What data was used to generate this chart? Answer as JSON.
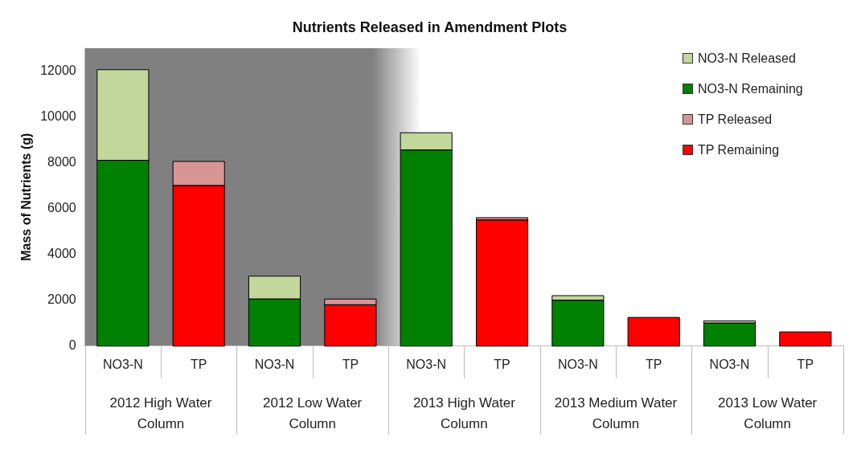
{
  "chart_data": {
    "type": "bar",
    "title": "Nutrients Released in Amendment Plots",
    "ylabel": "Mass of Nutrients (g)",
    "categories": [
      "NO3-N",
      "TP",
      "NO3-N",
      "TP",
      "NO3-N",
      "TP",
      "NO3-N",
      "TP",
      "NO3-N",
      "TP"
    ],
    "annotations": [
      "2012 High Water Column",
      "2012 Low Water Column",
      "2013 High Water Column",
      "2013 Medium Water Column",
      "2013 Low Water Column"
    ],
    "stacked": true,
    "ylim": [
      0,
      13000
    ],
    "yticks": [
      0,
      2000,
      4000,
      6000,
      8000,
      10000,
      12000
    ],
    "grid": false,
    "legend": "top right",
    "series": [
      {
        "name": "TP Remaining",
        "color": "#ff0000",
        "values": [
          null,
          7000,
          null,
          1800,
          null,
          5500,
          null,
          1250,
          null,
          620
        ]
      },
      {
        "name": "TP Released",
        "color": "#d99594",
        "values": [
          null,
          1050,
          null,
          250,
          null,
          100,
          null,
          null,
          null,
          null
        ]
      },
      {
        "name": "NO3-N Remaining",
        "color": "#008000",
        "values": [
          8100,
          null,
          2050,
          null,
          8550,
          null,
          2000,
          null,
          1000,
          null
        ]
      },
      {
        "name": "NO3-N Released",
        "color": "#c3d69b",
        "values": [
          3950,
          null,
          1000,
          null,
          750,
          null,
          200,
          null,
          100,
          null
        ]
      }
    ]
  }
}
